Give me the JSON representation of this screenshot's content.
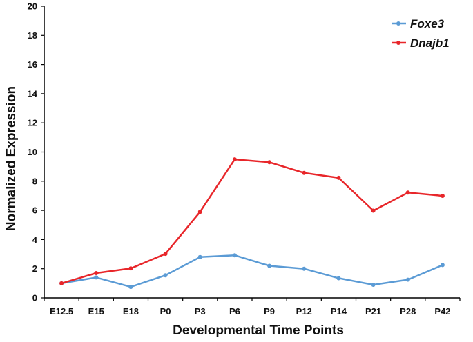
{
  "chart_data": {
    "type": "line",
    "xlabel": "Developmental Time Points",
    "ylabel": "Normalized Expression",
    "ylim": [
      0,
      20
    ],
    "yticks": [
      "0",
      "2",
      "4",
      "6",
      "8",
      "10",
      "12",
      "14",
      "16",
      "18",
      "20"
    ],
    "categories": [
      "E12.5",
      "E15",
      "E18",
      "P0",
      "P3",
      "P6",
      "P9",
      "P12",
      "P14",
      "P21",
      "P28",
      "P42"
    ],
    "grid": false,
    "legend_position": "top-right",
    "series": [
      {
        "name": "Foxe3",
        "color": "#5b9bd5",
        "values": [
          1.0,
          1.4,
          0.75,
          1.55,
          2.8,
          2.92,
          2.2,
          2.0,
          1.35,
          0.9,
          1.25,
          2.25
        ]
      },
      {
        "name": "Dnajb1",
        "color": "#e8262a",
        "values": [
          1.0,
          1.7,
          2.02,
          3.02,
          5.9,
          9.5,
          9.3,
          8.57,
          8.23,
          5.98,
          7.22,
          7.0
        ]
      }
    ]
  }
}
